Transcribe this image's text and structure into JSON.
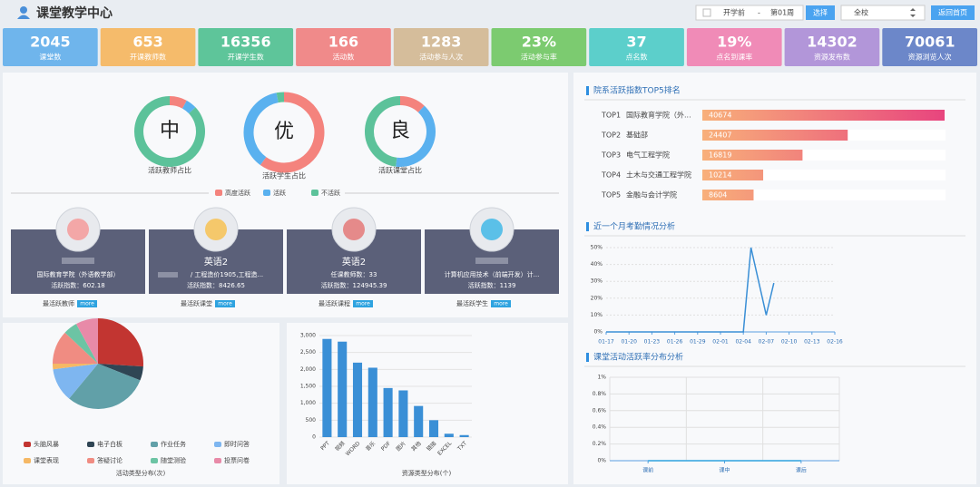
{
  "header": {
    "title": "课堂教学中心",
    "term": "开学前",
    "separator": "-",
    "week": "第01周",
    "select_button": "选择",
    "scope": "全校",
    "home_button": "返回首页"
  },
  "stats": [
    {
      "value": "2045",
      "label": "课堂数",
      "color": "#6fb5ec"
    },
    {
      "value": "653",
      "label": "开课教师数",
      "color": "#f5bb6b"
    },
    {
      "value": "16356",
      "label": "开课学生数",
      "color": "#5ec59a"
    },
    {
      "value": "166",
      "label": "活动数",
      "color": "#f08a8a"
    },
    {
      "value": "1283",
      "label": "活动参与人次",
      "color": "#d5bd9b"
    },
    {
      "value": "23%",
      "label": "活动参与率",
      "color": "#7ccb70"
    },
    {
      "value": "37",
      "label": "点名数",
      "color": "#5ccfcb"
    },
    {
      "value": "19%",
      "label": "点名到课率",
      "color": "#f08bb7"
    },
    {
      "value": "14302",
      "label": "资源发布数",
      "color": "#b296d9"
    },
    {
      "value": "70061",
      "label": "资源浏览人次",
      "color": "#6c87c9"
    }
  ],
  "rings": {
    "type": "donut",
    "items": [
      {
        "grade": "中",
        "caption": "活跃教师占比",
        "values": [
          8,
          5,
          87
        ]
      },
      {
        "grade": "优",
        "caption": "活跃学生占比",
        "values": [
          60,
          37,
          3
        ]
      },
      {
        "grade": "良",
        "caption": "活跃课堂占比",
        "values": [
          12,
          40,
          48
        ]
      }
    ],
    "series": [
      {
        "name": "高度活跃",
        "color": "#f4837d"
      },
      {
        "name": "活跃",
        "color": "#5ab1ef"
      },
      {
        "name": "不活跃",
        "color": "#5cc29a"
      }
    ]
  },
  "cards": [
    {
      "lines": [
        "国际教育学院（外语教学部）",
        "活跃指数：602.18"
      ],
      "footer": "最活跃教师",
      "more": "more"
    },
    {
      "title": "英语2",
      "lines": [
        "/ 工程造价1905,工程造...",
        "活跃指数：8426.65"
      ],
      "footer": "最活跃课堂",
      "more": "more"
    },
    {
      "title": "英语2",
      "lines": [
        "任课教师数：33",
        "活跃指数：124945.39"
      ],
      "footer": "最活跃课程",
      "more": "more"
    },
    {
      "lines": [
        "计算机应用技术（前端开发）计...",
        "活跃指数：1139"
      ],
      "footer": "最活跃学生",
      "more": "more"
    }
  ],
  "pie_chart": {
    "type": "pie",
    "title": "活动类型分布(次)",
    "categories": [
      "头脑风暴",
      "电子白板",
      "作业任务",
      "即时问答",
      "课堂表现",
      "答疑讨论",
      "随堂测验",
      "投票问卷"
    ],
    "values": [
      26,
      5,
      30,
      12,
      2,
      12,
      5,
      8
    ],
    "colors": [
      "#c23531",
      "#2f4554",
      "#61a0a8",
      "#7eb6f0",
      "#f5b865",
      "#f08c82",
      "#6cc4a4",
      "#e88aa8"
    ]
  },
  "bar_chart": {
    "type": "bar",
    "title": "资源类型分布(个)",
    "categories": [
      "PPT",
      "视频",
      "WORD",
      "音乐",
      "PDF",
      "图片",
      "其他",
      "链接",
      "EXCEL",
      "TXT"
    ],
    "values": [
      2900,
      2820,
      2200,
      2050,
      1450,
      1380,
      920,
      500,
      100,
      60
    ],
    "color": "#3a8fd6",
    "ylim": [
      0,
      3000
    ],
    "yticks": [
      0,
      500,
      {
        "value": 1000,
        "label": "1,000"
      },
      {
        "value": 1500,
        "label": "1,500"
      },
      {
        "value": 2000,
        "label": "2,000"
      },
      {
        "value": 2500,
        "label": "2,500"
      },
      {
        "value": 3000,
        "label": "3,000"
      }
    ],
    "grid": true
  },
  "top5": {
    "type": "hbar",
    "title": "院系活跃指数TOP5排名",
    "ranks": [
      "TOP1",
      "TOP2",
      "TOP3",
      "TOP4",
      "TOP5"
    ],
    "categories": [
      "国际教育学院（外...",
      "基础部",
      "电气工程学院",
      "土木与交通工程学院",
      "金融与会计学院"
    ],
    "values": [
      40674,
      24407,
      16819,
      10214,
      8604
    ]
  },
  "attendance": {
    "type": "line",
    "title": "近一个月考勤情况分析",
    "categories": [
      "01-17",
      null,
      null,
      "01-20",
      null,
      null,
      "01-23",
      null,
      null,
      "01-26",
      null,
      null,
      "01-29",
      null,
      null,
      "02-01",
      null,
      null,
      "02-04",
      null,
      null,
      "02-07",
      null,
      null,
      "02-10",
      null,
      null,
      "02-13",
      null,
      null,
      "02-16"
    ],
    "values": [
      0,
      0,
      0,
      0,
      0,
      0,
      0,
      0,
      0,
      0,
      0,
      0,
      0,
      0,
      0,
      0,
      0,
      0,
      0,
      50,
      30,
      10,
      29,
      null,
      null,
      null,
      null,
      null,
      null,
      null,
      null
    ],
    "color": "#3a8fd6",
    "ylim": [
      0,
      50
    ],
    "yticks": [
      {
        "value": 0,
        "label": "0%"
      },
      {
        "value": 10,
        "label": "10%"
      },
      {
        "value": 20,
        "label": "20%"
      },
      {
        "value": 30,
        "label": "30%"
      },
      {
        "value": 40,
        "label": "40%"
      },
      {
        "value": 50,
        "label": "50%"
      }
    ],
    "grid": true
  },
  "activity_rate": {
    "type": "line",
    "title": "课堂活动活跃率分布分析",
    "categories": [
      "课前",
      "课中",
      "课后"
    ],
    "values": [
      0,
      0,
      0
    ],
    "color": "#2ea3e0",
    "ylim": [
      0,
      1
    ],
    "yticks": [
      {
        "value": 0,
        "label": "0%"
      },
      {
        "value": 0.2,
        "label": "0.2%"
      },
      {
        "value": 0.4,
        "label": "0.4%"
      },
      {
        "value": 0.6,
        "label": "0.6%"
      },
      {
        "value": 0.8,
        "label": "0.8%"
      },
      {
        "value": 1,
        "label": "1%"
      }
    ],
    "grid": true
  }
}
